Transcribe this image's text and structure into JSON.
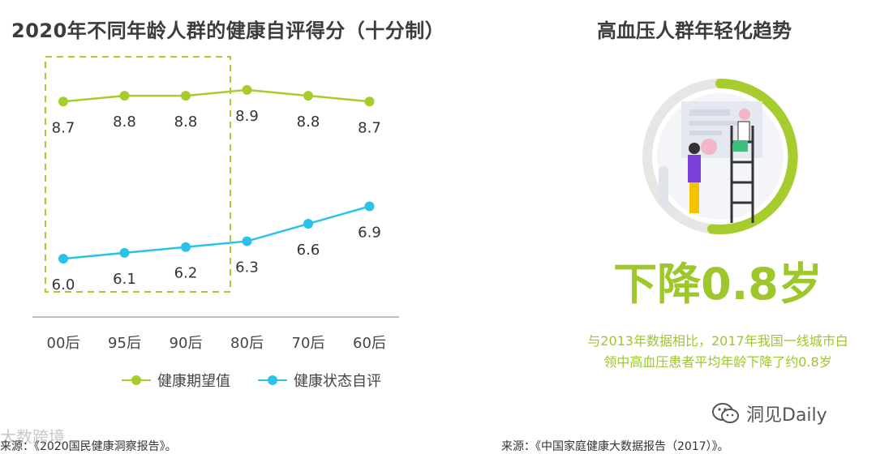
{
  "left_title": "2020年不同年龄人群的健康自评得分（十分制）",
  "right_title": "高血压人群年轻化趋势",
  "chart_data": {
    "type": "line",
    "categories": [
      "00后",
      "95后",
      "90后",
      "80后",
      "70后",
      "60后"
    ],
    "series": [
      {
        "name": "健康期望值",
        "values": [
          8.7,
          8.8,
          8.8,
          8.9,
          8.8,
          8.7
        ],
        "color": "#a6cc2e"
      },
      {
        "name": "健康状态自评",
        "values": [
          6.0,
          6.1,
          6.2,
          6.3,
          6.6,
          6.9
        ],
        "color": "#29c3e8"
      }
    ],
    "ylim": [
      5.5,
      9.4
    ],
    "highlight_categories": [
      "00后",
      "95后",
      "90后"
    ],
    "highlight_color": "#a6cc2e",
    "legend_position": "bottom"
  },
  "big_text": "下降0.8岁",
  "description_line1": "与2013年数据相比，2017年我国一线城市白",
  "description_line2": "领中高血压患者平均年龄下降了约0.8岁",
  "source_left": "来源：《2020国民健康洞察报告》。",
  "source_right": "来源：《中国家庭健康大数据报告（2017）》。",
  "watermark_left": "大数跨境",
  "wechat_label": "洞见Daily",
  "accent_green": "#9dc72a",
  "accent_blue": "#29c3e8",
  "icons": [
    "wechat-icon",
    "illustration-people-ladder"
  ]
}
